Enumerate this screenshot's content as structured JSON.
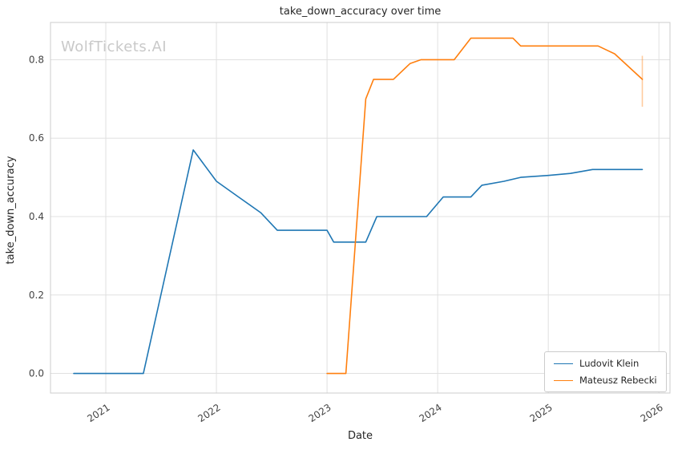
{
  "watermark": "WolfTickets.AI",
  "chart_data": {
    "type": "line",
    "title": "take_down_accuracy over time",
    "xlabel": "Date",
    "ylabel": "take_down_accuracy",
    "xlim": [
      2020.5,
      2026.1
    ],
    "ylim": [
      -0.05,
      0.895
    ],
    "grid": true,
    "legend_position": "lower right",
    "x_ticks": [
      2021,
      2022,
      2023,
      2024,
      2025,
      2026
    ],
    "x_tick_labels": [
      "2021",
      "2022",
      "2023",
      "2024",
      "2025",
      "2026"
    ],
    "y_ticks": [
      0.0,
      0.2,
      0.4,
      0.6,
      0.8
    ],
    "y_tick_labels": [
      "0.0",
      "0.2",
      "0.4",
      "0.6",
      "0.8"
    ],
    "grid_color": "#e0e0e0",
    "spine_color": "#cccccc",
    "tick_label_color": "#444444",
    "series": [
      {
        "name": "Ludovit Klein",
        "color": "#1f77b4",
        "x": [
          2020.71,
          2021.0,
          2021.34,
          2021.79,
          2022.0,
          2022.2,
          2022.4,
          2022.55,
          2022.8,
          2023.0,
          2023.06,
          2023.35,
          2023.45,
          2023.6,
          2023.9,
          2024.05,
          2024.3,
          2024.4,
          2024.6,
          2024.75,
          2025.0,
          2025.2,
          2025.4,
          2025.6,
          2025.85
        ],
        "y": [
          0.0,
          0.0,
          0.0,
          0.57,
          0.49,
          0.45,
          0.41,
          0.365,
          0.365,
          0.365,
          0.335,
          0.335,
          0.4,
          0.4,
          0.4,
          0.45,
          0.45,
          0.48,
          0.49,
          0.5,
          0.505,
          0.51,
          0.52,
          0.52,
          0.52
        ]
      },
      {
        "name": "Mateusz Rebecki",
        "color": "#ff7f0e",
        "x": [
          2023.0,
          2023.17,
          2023.35,
          2023.42,
          2023.6,
          2023.75,
          2023.85,
          2024.15,
          2024.3,
          2024.68,
          2024.75,
          2025.45,
          2025.6,
          2025.85
        ],
        "y": [
          0.0,
          0.0,
          0.7,
          0.75,
          0.75,
          0.79,
          0.8,
          0.8,
          0.855,
          0.855,
          0.835,
          0.835,
          0.815,
          0.75
        ]
      }
    ],
    "error_bar": {
      "x": 2025.85,
      "y_low": 0.68,
      "y_high": 0.81,
      "color": "#ff7f0e"
    }
  }
}
